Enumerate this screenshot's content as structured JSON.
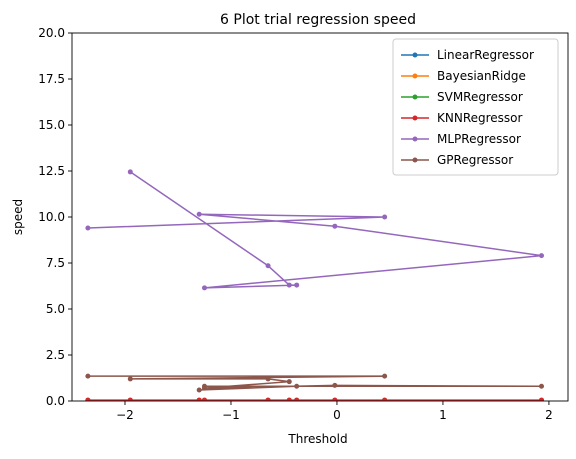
{
  "chart_data": {
    "type": "line",
    "title": "6 Plot trial regression speed",
    "xlabel": "Threshold",
    "ylabel": "speed",
    "xlim": [
      -2.5,
      2.18
    ],
    "ylim": [
      0,
      20
    ],
    "xticks": [
      -2,
      -1,
      0,
      1,
      2
    ],
    "yticks": [
      0.0,
      2.5,
      5.0,
      7.5,
      10.0,
      12.5,
      15.0,
      17.5,
      20.0
    ],
    "xtick_labels": [
      "−2",
      "−1",
      "0",
      "1",
      "2"
    ],
    "ytick_labels": [
      "0.0",
      "2.5",
      "5.0",
      "7.5",
      "10.0",
      "12.5",
      "15.0",
      "17.5",
      "20.0"
    ],
    "grid": false,
    "legend_position": "top-right",
    "series": [
      {
        "name": "LinearRegressor",
        "color": "#1f77b4",
        "points": [
          [
            -1.95,
            0.02
          ],
          [
            -2.35,
            0.02
          ],
          [
            -1.3,
            0.02
          ],
          [
            -0.38,
            0.02
          ],
          [
            -0.02,
            0.02
          ],
          [
            -0.65,
            0.02
          ],
          [
            -1.25,
            0.02
          ],
          [
            0.45,
            0.02
          ],
          [
            1.93,
            0.02
          ],
          [
            -0.45,
            0.02
          ]
        ]
      },
      {
        "name": "BayesianRidge",
        "color": "#ff7f0e",
        "points": [
          [
            -1.95,
            0.03
          ],
          [
            -2.35,
            0.03
          ],
          [
            -1.3,
            0.03
          ],
          [
            -0.38,
            0.03
          ],
          [
            -0.02,
            0.03
          ],
          [
            -0.65,
            0.03
          ],
          [
            -1.25,
            0.03
          ],
          [
            0.45,
            0.03
          ],
          [
            1.93,
            0.03
          ],
          [
            -0.45,
            0.03
          ]
        ]
      },
      {
        "name": "SVMRegressor",
        "color": "#2ca02c",
        "points": [
          [
            -1.95,
            0.04
          ],
          [
            -2.35,
            0.04
          ],
          [
            -1.3,
            0.04
          ],
          [
            -0.38,
            0.04
          ],
          [
            -0.02,
            0.04
          ],
          [
            -0.65,
            0.04
          ],
          [
            -1.25,
            0.04
          ],
          [
            0.45,
            0.04
          ],
          [
            1.93,
            0.04
          ],
          [
            -0.45,
            0.04
          ]
        ]
      },
      {
        "name": "KNNRegressor",
        "color": "#d62728",
        "points": [
          [
            -1.95,
            0.05
          ],
          [
            -2.35,
            0.05
          ],
          [
            -1.3,
            0.05
          ],
          [
            -0.38,
            0.05
          ],
          [
            -0.02,
            0.05
          ],
          [
            -0.65,
            0.05
          ],
          [
            -1.25,
            0.05
          ],
          [
            0.45,
            0.05
          ],
          [
            1.93,
            0.05
          ],
          [
            -0.45,
            0.05
          ]
        ]
      },
      {
        "name": "MLPRegressor",
        "color": "#9467bd",
        "points": [
          [
            -1.95,
            12.45
          ],
          [
            -0.65,
            7.35
          ],
          [
            -0.45,
            6.3
          ],
          [
            -0.38,
            6.3
          ],
          [
            -1.25,
            6.15
          ],
          [
            1.93,
            7.9
          ],
          [
            -0.02,
            9.5
          ],
          [
            -1.3,
            10.15
          ],
          [
            0.45,
            10.0
          ],
          [
            -2.35,
            9.4
          ]
        ]
      },
      {
        "name": "GPRegressor",
        "color": "#8c564b",
        "points": [
          [
            -2.35,
            1.35
          ],
          [
            0.45,
            1.35
          ],
          [
            -1.95,
            1.2
          ],
          [
            -0.65,
            1.2
          ],
          [
            -0.45,
            1.05
          ],
          [
            -1.25,
            0.7
          ],
          [
            -0.02,
            0.85
          ],
          [
            1.93,
            0.8
          ],
          [
            -1.25,
            0.8
          ],
          [
            -0.38,
            0.8
          ],
          [
            -1.3,
            0.6
          ]
        ]
      }
    ]
  }
}
